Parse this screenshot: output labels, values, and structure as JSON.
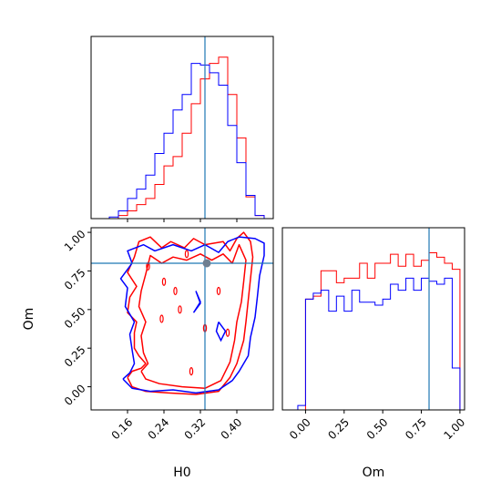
{
  "chart_data": {
    "type": "corner",
    "parameters": [
      "H0",
      "Om"
    ],
    "truth": {
      "H0": 0.33,
      "Om": 0.8
    },
    "colors": {
      "series_a": "#ff0000",
      "series_b": "#0000ff",
      "truth": "#1f77b4"
    },
    "axes": {
      "H0": {
        "range": [
          0.08,
          0.48
        ],
        "ticks": [
          "0.16",
          "0.24",
          "0.32",
          "0.40"
        ],
        "tick_values": [
          0.16,
          0.24,
          0.32,
          0.4
        ]
      },
      "Om": {
        "range": [
          -0.15,
          1.03
        ],
        "ticks": [
          "0.00",
          "0.25",
          "0.50",
          "0.75",
          "1.00"
        ],
        "tick_values": [
          0.0,
          0.25,
          0.5,
          0.75,
          1.0
        ]
      }
    },
    "hist_H0": {
      "bin_edges": [
        0.08,
        0.1,
        0.12,
        0.14,
        0.16,
        0.18,
        0.2,
        0.22,
        0.24,
        0.26,
        0.28,
        0.3,
        0.32,
        0.34,
        0.36,
        0.38,
        0.4,
        0.42,
        0.44,
        0.46,
        0.48
      ],
      "series": [
        {
          "color": "red",
          "values": [
            0,
            0,
            0,
            0.02,
            0.05,
            0.09,
            0.13,
            0.22,
            0.34,
            0.4,
            0.55,
            0.74,
            0.9,
            1.0,
            1.04,
            0.8,
            0.52,
            0.14,
            0.02,
            0
          ]
        },
        {
          "color": "blue",
          "values": [
            0,
            0,
            0.01,
            0.05,
            0.13,
            0.19,
            0.28,
            0.42,
            0.55,
            0.7,
            0.8,
            1.0,
            0.99,
            0.94,
            0.86,
            0.6,
            0.36,
            0.15,
            0.02,
            0
          ]
        }
      ]
    },
    "hist_Om": {
      "bin_edges": [
        -0.15,
        -0.1,
        -0.05,
        0,
        0.05,
        0.1,
        0.15,
        0.2,
        0.25,
        0.3,
        0.35,
        0.4,
        0.45,
        0.5,
        0.55,
        0.6,
        0.65,
        0.7,
        0.75,
        0.8,
        0.85,
        0.9,
        0.95,
        1.0,
        1.03
      ],
      "series": [
        {
          "color": "red",
          "values": [
            0,
            0,
            0,
            0.74,
            0.76,
            0.93,
            0.93,
            0.85,
            0.88,
            0.88,
            0.98,
            0.88,
            0.98,
            0.98,
            1.04,
            0.96,
            1.04,
            0.96,
            1.0,
            1.05,
            1.02,
            0.98,
            0.94,
            0
          ]
        },
        {
          "color": "blue",
          "values": [
            0,
            0,
            0.03,
            0.74,
            0.78,
            0.8,
            0.66,
            0.76,
            0.66,
            0.8,
            0.72,
            0.72,
            0.7,
            0.74,
            0.84,
            0.8,
            0.88,
            0.8,
            0.88,
            0.86,
            0.84,
            0.88,
            0.28,
            0
          ]
        }
      ]
    },
    "contours": [
      {
        "color": "red",
        "level": "outer",
        "points": [
          [
            0.16,
            0.06
          ],
          [
            0.17,
            0.1
          ],
          [
            0.19,
            0.12
          ],
          [
            0.2,
            0.15
          ],
          [
            0.185,
            0.2
          ],
          [
            0.175,
            0.25
          ],
          [
            0.175,
            0.35
          ],
          [
            0.18,
            0.42
          ],
          [
            0.16,
            0.48
          ],
          [
            0.165,
            0.58
          ],
          [
            0.18,
            0.65
          ],
          [
            0.16,
            0.74
          ],
          [
            0.175,
            0.84
          ],
          [
            0.185,
            0.94
          ],
          [
            0.21,
            0.97
          ],
          [
            0.235,
            0.9
          ],
          [
            0.255,
            0.94
          ],
          [
            0.285,
            0.9
          ],
          [
            0.305,
            0.96
          ],
          [
            0.33,
            0.92
          ],
          [
            0.37,
            0.94
          ],
          [
            0.385,
            0.88
          ],
          [
            0.4,
            0.96
          ],
          [
            0.415,
            1.0
          ],
          [
            0.43,
            0.94
          ],
          [
            0.435,
            0.84
          ],
          [
            0.43,
            0.7
          ],
          [
            0.425,
            0.56
          ],
          [
            0.42,
            0.42
          ],
          [
            0.415,
            0.3
          ],
          [
            0.4,
            0.15
          ],
          [
            0.385,
            0.06
          ],
          [
            0.36,
            -0.03
          ],
          [
            0.31,
            -0.05
          ],
          [
            0.25,
            -0.04
          ],
          [
            0.2,
            -0.03
          ],
          [
            0.17,
            0.0
          ],
          [
            0.16,
            0.06
          ]
        ]
      },
      {
        "color": "red",
        "level": "inner",
        "points": [
          [
            0.19,
            0.1
          ],
          [
            0.205,
            0.15
          ],
          [
            0.195,
            0.22
          ],
          [
            0.19,
            0.33
          ],
          [
            0.2,
            0.42
          ],
          [
            0.185,
            0.52
          ],
          [
            0.19,
            0.62
          ],
          [
            0.2,
            0.73
          ],
          [
            0.21,
            0.85
          ],
          [
            0.235,
            0.8
          ],
          [
            0.26,
            0.84
          ],
          [
            0.29,
            0.82
          ],
          [
            0.32,
            0.86
          ],
          [
            0.345,
            0.82
          ],
          [
            0.37,
            0.86
          ],
          [
            0.39,
            0.8
          ],
          [
            0.405,
            0.92
          ],
          [
            0.42,
            0.82
          ],
          [
            0.415,
            0.68
          ],
          [
            0.41,
            0.55
          ],
          [
            0.4,
            0.42
          ],
          [
            0.395,
            0.3
          ],
          [
            0.385,
            0.16
          ],
          [
            0.365,
            0.04
          ],
          [
            0.33,
            -0.01
          ],
          [
            0.28,
            0.0
          ],
          [
            0.23,
            0.02
          ],
          [
            0.2,
            0.05
          ],
          [
            0.19,
            0.1
          ]
        ]
      },
      {
        "color": "blue",
        "level": "outer",
        "points": [
          [
            0.15,
            0.05
          ],
          [
            0.165,
            0.09
          ],
          [
            0.175,
            0.15
          ],
          [
            0.17,
            0.24
          ],
          [
            0.165,
            0.34
          ],
          [
            0.175,
            0.42
          ],
          [
            0.155,
            0.52
          ],
          [
            0.16,
            0.64
          ],
          [
            0.145,
            0.7
          ],
          [
            0.17,
            0.8
          ],
          [
            0.16,
            0.88
          ],
          [
            0.195,
            0.92
          ],
          [
            0.22,
            0.88
          ],
          [
            0.26,
            0.92
          ],
          [
            0.3,
            0.88
          ],
          [
            0.33,
            0.92
          ],
          [
            0.36,
            0.87
          ],
          [
            0.38,
            0.94
          ],
          [
            0.405,
            0.97
          ],
          [
            0.44,
            0.96
          ],
          [
            0.46,
            0.93
          ],
          [
            0.46,
            0.85
          ],
          [
            0.45,
            0.72
          ],
          [
            0.445,
            0.58
          ],
          [
            0.44,
            0.45
          ],
          [
            0.43,
            0.32
          ],
          [
            0.425,
            0.2
          ],
          [
            0.405,
            0.1
          ],
          [
            0.39,
            0.04
          ],
          [
            0.36,
            -0.02
          ],
          [
            0.31,
            -0.04
          ],
          [
            0.26,
            -0.02
          ],
          [
            0.21,
            -0.03
          ],
          [
            0.17,
            -0.01
          ],
          [
            0.15,
            0.05
          ]
        ]
      }
    ]
  }
}
